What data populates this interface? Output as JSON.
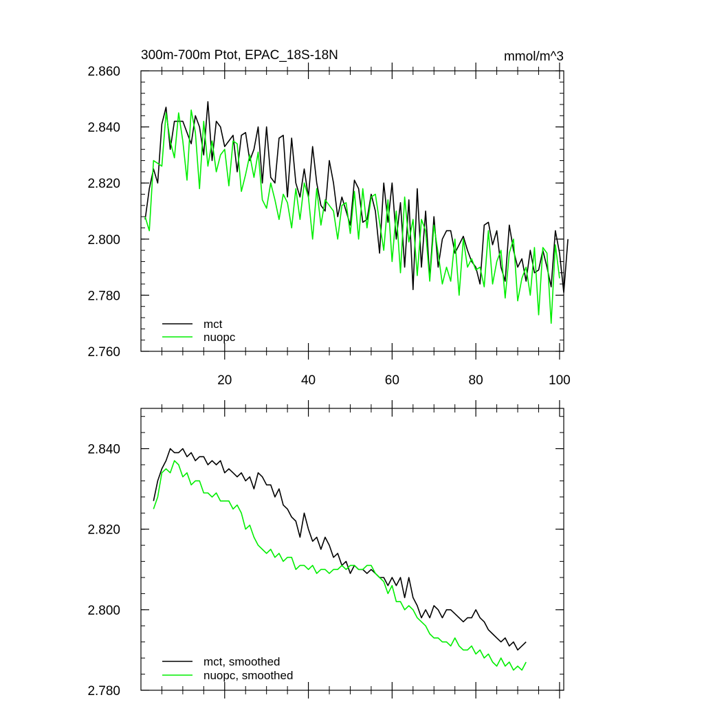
{
  "colors": {
    "mct": "#000000",
    "nuopc": "#00ee00",
    "axis": "#000000",
    "background": "#ffffff"
  },
  "chart_data": [
    {
      "type": "line",
      "title": "300m-700m Ptot, EPAC_18S-18N",
      "units": "mmol/m^3",
      "xlabel": "",
      "ylabel": "",
      "xlim": [
        0,
        101
      ],
      "ylim": [
        2.76,
        2.86
      ],
      "yticks": [
        2.76,
        2.78,
        2.8,
        2.82,
        2.84,
        2.86
      ],
      "ytick_labels": [
        "2.760",
        "2.780",
        "2.800",
        "2.820",
        "2.840",
        "2.860"
      ],
      "xticks": [
        20,
        40,
        60,
        80,
        100
      ],
      "xtick_labels": [
        "20",
        "40",
        "60",
        "80",
        "100"
      ],
      "show_x_tick_labels": true,
      "legend_position": "bottom-left",
      "series": [
        {
          "name": "mct",
          "color_key": "mct",
          "x_start": 1,
          "values": [
            2.807,
            2.818,
            2.825,
            2.82,
            2.841,
            2.847,
            2.832,
            2.842,
            2.842,
            2.842,
            2.838,
            2.834,
            2.844,
            2.84,
            2.83,
            2.849,
            2.828,
            2.842,
            2.84,
            2.833,
            2.835,
            2.837,
            2.824,
            2.837,
            2.838,
            2.828,
            2.832,
            2.84,
            2.82,
            2.84,
            2.822,
            2.82,
            2.836,
            2.837,
            2.815,
            2.836,
            2.82,
            2.815,
            2.825,
            2.815,
            2.833,
            2.82,
            2.812,
            2.81,
            2.828,
            2.82,
            2.808,
            2.815,
            2.81,
            2.805,
            2.821,
            2.818,
            2.806,
            2.807,
            2.816,
            2.81,
            2.795,
            2.82,
            2.806,
            2.82,
            2.8,
            2.813,
            2.79,
            2.814,
            2.782,
            2.818,
            2.79,
            2.81,
            2.786,
            2.808,
            2.79,
            2.8,
            2.803,
            2.803,
            2.795,
            2.798,
            2.801,
            2.796,
            2.792,
            2.79,
            2.784,
            2.805,
            2.806,
            2.798,
            2.803,
            2.79,
            2.785,
            2.805,
            2.796,
            2.79,
            2.793,
            2.785,
            2.796,
            2.788,
            2.789,
            2.796,
            2.79,
            2.783,
            2.803,
            2.795,
            2.781,
            2.8
          ]
        },
        {
          "name": "nuopc",
          "color_key": "nuopc",
          "x_start": 1,
          "values": [
            2.808,
            2.803,
            2.828,
            2.827,
            2.826,
            2.845,
            2.835,
            2.829,
            2.845,
            2.835,
            2.821,
            2.846,
            2.838,
            2.818,
            2.842,
            2.826,
            2.835,
            2.824,
            2.83,
            2.832,
            2.819,
            2.835,
            2.834,
            2.817,
            2.823,
            2.83,
            2.822,
            2.831,
            2.814,
            2.811,
            2.82,
            2.814,
            2.807,
            2.816,
            2.813,
            2.804,
            2.818,
            2.807,
            2.82,
            2.815,
            2.8,
            2.818,
            2.805,
            2.814,
            2.812,
            2.81,
            2.8,
            2.812,
            2.813,
            2.802,
            2.817,
            2.8,
            2.818,
            2.804,
            2.815,
            2.816,
            2.806,
            2.796,
            2.814,
            2.792,
            2.81,
            2.788,
            2.815,
            2.799,
            2.807,
            2.787,
            2.807,
            2.803,
            2.785,
            2.805,
            2.795,
            2.784,
            2.79,
            2.785,
            2.8,
            2.78,
            2.8,
            2.79,
            2.793,
            2.789,
            2.79,
            2.783,
            2.803,
            2.784,
            2.792,
            2.796,
            2.779,
            2.795,
            2.8,
            2.778,
            2.786,
            2.79,
            2.78,
            2.797,
            2.773,
            2.797,
            2.795,
            2.77,
            2.798,
            2.786
          ]
        }
      ]
    },
    {
      "type": "line",
      "title": "",
      "units": "",
      "xlabel": "",
      "ylabel": "",
      "xlim": [
        0,
        101
      ],
      "ylim": [
        2.78,
        2.85
      ],
      "yticks": [
        2.78,
        2.8,
        2.82,
        2.84
      ],
      "ytick_labels": [
        "2.780",
        "2.800",
        "2.820",
        "2.840"
      ],
      "xticks": [
        20,
        40,
        60,
        80,
        100
      ],
      "xtick_labels": [
        "20",
        "40",
        "60",
        "80",
        "100"
      ],
      "show_x_tick_labels": false,
      "legend_position": "bottom-left",
      "series": [
        {
          "name": "mct, smoothed",
          "color_key": "mct",
          "x_start": 3,
          "values": [
            2.827,
            2.832,
            2.835,
            2.837,
            2.84,
            2.839,
            2.839,
            2.84,
            2.838,
            2.839,
            2.837,
            2.838,
            2.838,
            2.836,
            2.837,
            2.836,
            2.837,
            2.834,
            2.835,
            2.834,
            2.833,
            2.834,
            2.832,
            2.833,
            2.83,
            2.834,
            2.833,
            2.831,
            2.831,
            2.828,
            2.83,
            2.826,
            2.825,
            2.823,
            2.822,
            2.818,
            2.824,
            2.82,
            2.817,
            2.818,
            2.815,
            2.818,
            2.816,
            2.813,
            2.814,
            2.811,
            2.812,
            2.809,
            2.811,
            2.81,
            2.81,
            2.809,
            2.81,
            2.809,
            2.808,
            2.808,
            2.806,
            2.808,
            2.806,
            2.808,
            2.803,
            2.808,
            2.803,
            2.801,
            2.798,
            2.8,
            2.798,
            2.801,
            2.8,
            2.798,
            2.8,
            2.8,
            2.799,
            2.798,
            2.797,
            2.798,
            2.798,
            2.8,
            2.798,
            2.797,
            2.795,
            2.794,
            2.793,
            2.792,
            2.793,
            2.791,
            2.792,
            2.79,
            2.791,
            2.792
          ]
        },
        {
          "name": "nuopc, smoothed",
          "color_key": "nuopc",
          "x_start": 3,
          "values": [
            2.825,
            2.828,
            2.834,
            2.835,
            2.834,
            2.837,
            2.836,
            2.833,
            2.834,
            2.831,
            2.832,
            2.832,
            2.829,
            2.829,
            2.828,
            2.829,
            2.827,
            2.827,
            2.827,
            2.825,
            2.826,
            2.824,
            2.82,
            2.821,
            2.818,
            2.816,
            2.815,
            2.814,
            2.815,
            2.813,
            2.814,
            2.812,
            2.813,
            2.813,
            2.81,
            2.811,
            2.811,
            2.81,
            2.811,
            2.809,
            2.81,
            2.81,
            2.809,
            2.81,
            2.81,
            2.811,
            2.81,
            2.811,
            2.811,
            2.81,
            2.81,
            2.811,
            2.811,
            2.809,
            2.808,
            2.807,
            2.804,
            2.806,
            2.802,
            2.802,
            2.8,
            2.801,
            2.8,
            2.798,
            2.797,
            2.796,
            2.794,
            2.793,
            2.793,
            2.792,
            2.792,
            2.791,
            2.793,
            2.791,
            2.79,
            2.79,
            2.791,
            2.789,
            2.79,
            2.788,
            2.789,
            2.787,
            2.786,
            2.788,
            2.786,
            2.787,
            2.785,
            2.786,
            2.785,
            2.787
          ]
        }
      ]
    }
  ]
}
